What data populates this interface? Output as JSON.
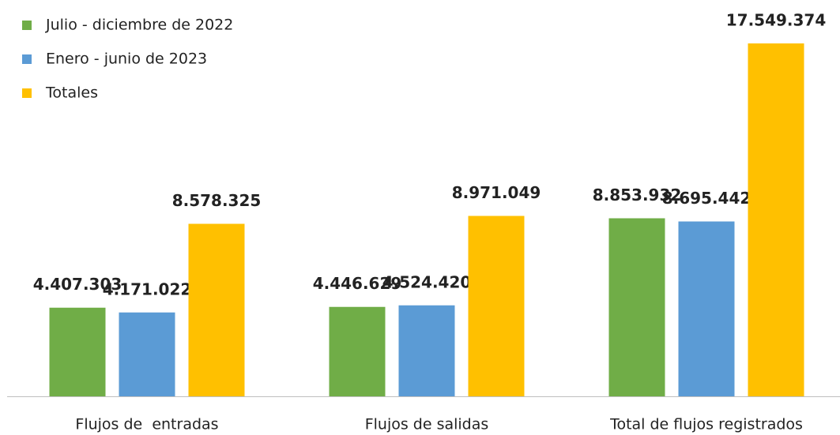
{
  "chart_data": {
    "type": "bar",
    "categories": [
      "Flujos de  entradas",
      "Flujos de salidas",
      "Total de flujos registrados"
    ],
    "series": [
      {
        "name": "Julio - diciembre de 2022",
        "color": "#70ad47",
        "values": [
          4407303,
          4446629,
          8853932
        ],
        "value_labels": [
          "4.407.303",
          "4.446.629",
          "8.853.932"
        ]
      },
      {
        "name": "Enero - junio de 2023",
        "color": "#5b9bd5",
        "values": [
          4171022,
          4524420,
          8695442
        ],
        "value_labels": [
          "4.171.022",
          "4.524.420",
          "8.695.442"
        ]
      },
      {
        "name": "Totales",
        "color": "#ffc000",
        "values": [
          8578325,
          8971049,
          17549374
        ],
        "value_labels": [
          "8.578.325",
          "8.971.049",
          "17.549.374"
        ]
      }
    ],
    "legend": "top-left"
  }
}
